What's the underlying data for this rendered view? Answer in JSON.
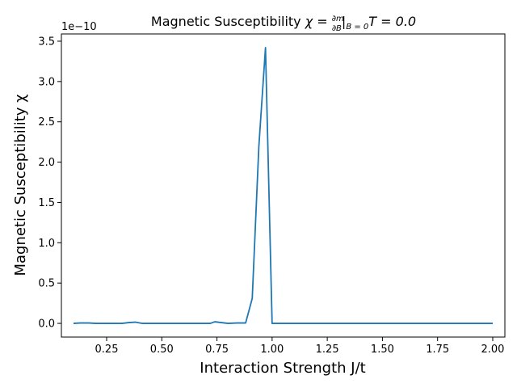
{
  "chart_data": {
    "type": "line",
    "title": "Magnetic Susceptibility χ = (∂m/∂B)|B=0 T = 0.0",
    "title_parts": {
      "prefix": "Magnetic Susceptibility ",
      "chi": "χ",
      "eq": " = ",
      "num": "∂m",
      "den": "∂B",
      "bar": "|",
      "sub": "B = 0",
      "suffix": "T = 0.0"
    },
    "xlabel": "Interaction Strength J/t",
    "ylabel": "Magnetic Susceptibility χ",
    "y_offset_label": "1e−10",
    "xlim": [
      0.045,
      2.055
    ],
    "ylim": [
      -0.17,
      3.59
    ],
    "xticks": [
      0.25,
      0.5,
      0.75,
      1.0,
      1.25,
      1.5,
      1.75,
      2.0
    ],
    "xtick_labels": [
      "0.25",
      "0.50",
      "0.75",
      "1.00",
      "1.25",
      "1.50",
      "1.75",
      "2.00"
    ],
    "yticks": [
      0.0,
      0.5,
      1.0,
      1.5,
      2.0,
      2.5,
      3.0,
      3.5
    ],
    "ytick_labels": [
      "0.0",
      "0.5",
      "1.0",
      "1.5",
      "2.0",
      "2.5",
      "3.0",
      "3.5"
    ],
    "grid": false,
    "series": [
      {
        "color": "#1f77b4",
        "x": [
          0.1,
          0.13,
          0.17,
          0.2,
          0.24,
          0.28,
          0.32,
          0.35,
          0.38,
          0.41,
          0.45,
          0.49,
          0.53,
          0.57,
          0.61,
          0.65,
          0.69,
          0.72,
          0.74,
          0.77,
          0.8,
          0.84,
          0.88,
          0.91,
          0.94,
          0.97,
          1.0,
          1.04,
          1.1,
          1.2,
          1.3,
          1.4,
          1.5,
          1.6,
          1.7,
          1.8,
          1.9,
          2.0
        ],
        "y": [
          0.0,
          0.005,
          0.005,
          0.0,
          0.0,
          0.0,
          0.0,
          0.01,
          0.015,
          0.0,
          0.0,
          0.0,
          0.0,
          0.0,
          0.0,
          0.0,
          0.0,
          0.0,
          0.02,
          0.01,
          0.0,
          0.005,
          0.005,
          0.31,
          2.2,
          3.42,
          0.0,
          0.0,
          0.0,
          0.0,
          0.0,
          0.0,
          0.0,
          0.0,
          0.0,
          0.0,
          0.0,
          0.0
        ]
      }
    ]
  }
}
